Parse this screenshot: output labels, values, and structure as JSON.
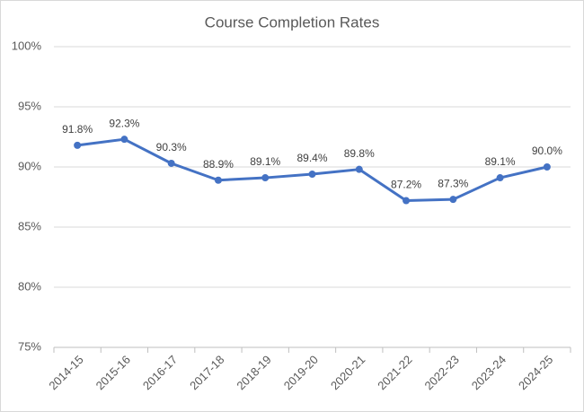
{
  "chart_data": {
    "type": "line",
    "title": "Course Completion Rates",
    "categories": [
      "2014-15",
      "2015-16",
      "2016-17",
      "2017-18",
      "2018-19",
      "2019-20",
      "2020-21",
      "2021-22",
      "2022-23",
      "2023-24",
      "2024-25"
    ],
    "values": [
      91.8,
      92.3,
      90.3,
      88.9,
      89.1,
      89.4,
      89.8,
      87.2,
      87.3,
      89.1,
      90.0
    ],
    "value_labels": [
      "91.8%",
      "92.3%",
      "90.3%",
      "88.9%",
      "89.1%",
      "89.4%",
      "89.8%",
      "87.2%",
      "87.3%",
      "89.1%",
      "90.0%"
    ],
    "color": "#4472c4",
    "ylim": [
      75,
      100
    ],
    "yticks": [
      {
        "value": 75,
        "label": "75%"
      },
      {
        "value": 80,
        "label": "80%"
      },
      {
        "value": 85,
        "label": "85%"
      },
      {
        "value": 90,
        "label": "90%"
      },
      {
        "value": 95,
        "label": "95%"
      },
      {
        "value": 100,
        "label": "100%"
      }
    ],
    "grid": true
  }
}
